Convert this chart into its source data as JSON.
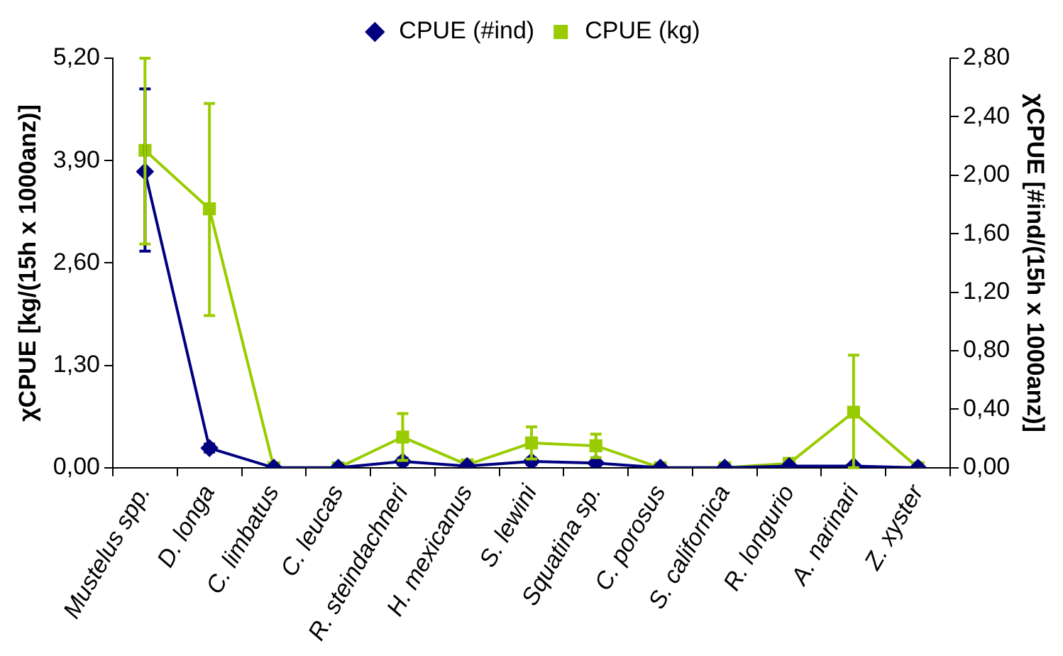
{
  "chart_data": {
    "type": "line",
    "ylabel": "χCPUE [kg/(15h x 1000anz)]",
    "y2label": "χCPUE [#ind/(15h x 1000anz)]",
    "categories": [
      "Mustelus spp.",
      "D. longa",
      "C. limbatus",
      "C. leucas",
      "R. steindachneri",
      "H. mexicanus",
      "S. lewini",
      "Squatina sp.",
      "C. porosus",
      "S. californica",
      "R. longurio",
      "A. narinari",
      "Z. xyster"
    ],
    "series": [
      {
        "name": "CPUE (#ind)",
        "color": "#000080",
        "marker": "diamond",
        "values": [
          3.76,
          0.25,
          0,
          0,
          0.08,
          0.02,
          0.08,
          0.06,
          0,
          0,
          0.02,
          0.02,
          0
        ],
        "errors": [
          [
            2.75,
            4.81
          ],
          [
            0.2,
            0.3
          ],
          null,
          null,
          [
            0.04,
            0.12
          ],
          null,
          [
            0.04,
            0.12
          ],
          null,
          null,
          null,
          null,
          null,
          null
        ]
      },
      {
        "name": "CPUE (kg)",
        "color": "#99cc00",
        "marker": "square",
        "axis": "y2",
        "values": [
          2.17,
          1.77,
          0,
          0,
          0.21,
          0.02,
          0.17,
          0.15,
          0,
          0,
          0.03,
          0.38,
          0
        ],
        "errors": [
          [
            1.53,
            2.8
          ],
          [
            1.04,
            2.49
          ],
          null,
          null,
          [
            0.05,
            0.37
          ],
          null,
          [
            0.06,
            0.28
          ],
          [
            0.07,
            0.23
          ],
          null,
          null,
          null,
          [
            0,
            0.77
          ],
          null
        ]
      }
    ],
    "ylim": [
      0,
      5.2
    ],
    "yticks": [
      {
        "value": 0,
        "label": "0,00"
      },
      {
        "value": 1.3,
        "label": "1,30"
      },
      {
        "value": 2.6,
        "label": "2,60"
      },
      {
        "value": 3.9,
        "label": "3,90"
      },
      {
        "value": 5.2,
        "label": "5,20"
      }
    ],
    "y2lim": [
      0,
      2.8
    ],
    "y2ticks": [
      {
        "value": 0,
        "label": "0,00"
      },
      {
        "value": 0.4,
        "label": "0,40"
      },
      {
        "value": 0.8,
        "label": "0,80"
      },
      {
        "value": 1.2,
        "label": "1,20"
      },
      {
        "value": 1.6,
        "label": "1,60"
      },
      {
        "value": 2,
        "label": "2,00"
      },
      {
        "value": 2.4,
        "label": "2,40"
      },
      {
        "value": 2.8,
        "label": "2,80"
      }
    ],
    "grid": false,
    "legend": "top",
    "line_style": "solid"
  }
}
